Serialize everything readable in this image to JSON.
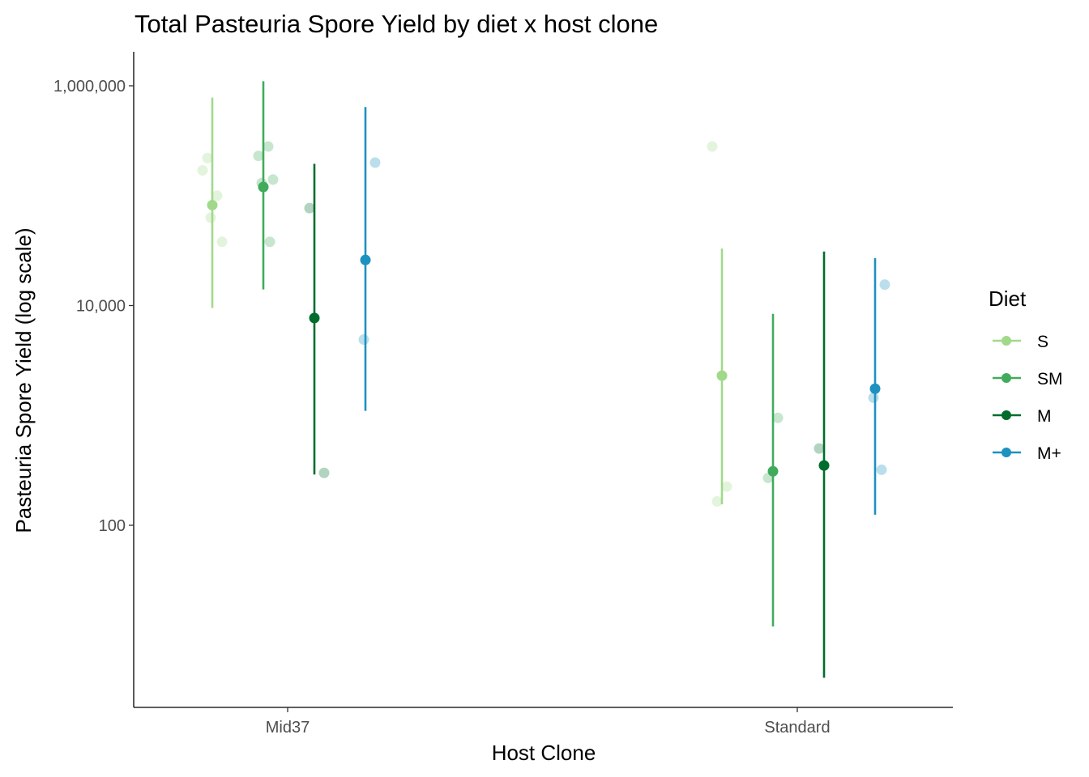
{
  "chart_data": {
    "type": "scatter",
    "title": "Total Pasteuria Spore Yield by diet x host clone",
    "xlabel": "Host Clone",
    "ylabel": "Pasteuria Spore Yield (log scale)",
    "y_scale": "log10",
    "ylim": [
      3.5,
      2200000
    ],
    "y_ticks": [
      100,
      10000,
      1000000
    ],
    "y_tick_labels": [
      "100",
      "10,000",
      "1,000,000"
    ],
    "categories": [
      "Mid37",
      "Standard"
    ],
    "grid": false,
    "legend": {
      "title": "Diet",
      "position": "right"
    },
    "series": [
      {
        "name": "S",
        "color": "#a1d98b",
        "summary": [
          {
            "category": "Mid37",
            "mean": 82000,
            "lower": 9500,
            "upper": 780000
          },
          {
            "category": "Standard",
            "mean": 2300,
            "lower": 155,
            "upper": 33000
          }
        ],
        "raw": [
          {
            "category": "Mid37",
            "values": [
              170000,
              100000,
              220000,
              38000,
              63000
            ]
          },
          {
            "category": "Standard",
            "values": [
              280000,
              225,
              165
            ]
          }
        ]
      },
      {
        "name": "SM",
        "color": "#41ab5d",
        "summary": [
          {
            "category": "Mid37",
            "mean": 120000,
            "lower": 14000,
            "upper": 1100000
          },
          {
            "category": "Standard",
            "mean": 310,
            "lower": 12,
            "upper": 8400
          }
        ],
        "raw": [
          {
            "category": "Mid37",
            "values": [
              280000,
              230000,
              140000,
              130000,
              38000
            ]
          },
          {
            "category": "Standard",
            "values": [
              950,
              270
            ]
          }
        ]
      },
      {
        "name": "M",
        "color": "#006d2c",
        "summary": [
          {
            "category": "Mid37",
            "mean": 7700,
            "lower": 290,
            "upper": 195000
          },
          {
            "category": "Standard",
            "mean": 350,
            "lower": 4.1,
            "upper": 31000
          }
        ],
        "raw": [
          {
            "category": "Mid37",
            "values": [
              77000,
              300
            ]
          },
          {
            "category": "Standard",
            "values": [
              500
            ]
          }
        ]
      },
      {
        "name": "M+",
        "color": "#1d91c0",
        "summary": [
          {
            "category": "Mid37",
            "mean": 26000,
            "lower": 1100,
            "upper": 640000
          },
          {
            "category": "Standard",
            "mean": 1750,
            "lower": 125,
            "upper": 27000
          }
        ],
        "raw": [
          {
            "category": "Mid37",
            "values": [
              200000,
              4900
            ]
          },
          {
            "category": "Standard",
            "values": [
              15500,
              1450,
              320
            ]
          }
        ]
      }
    ]
  }
}
